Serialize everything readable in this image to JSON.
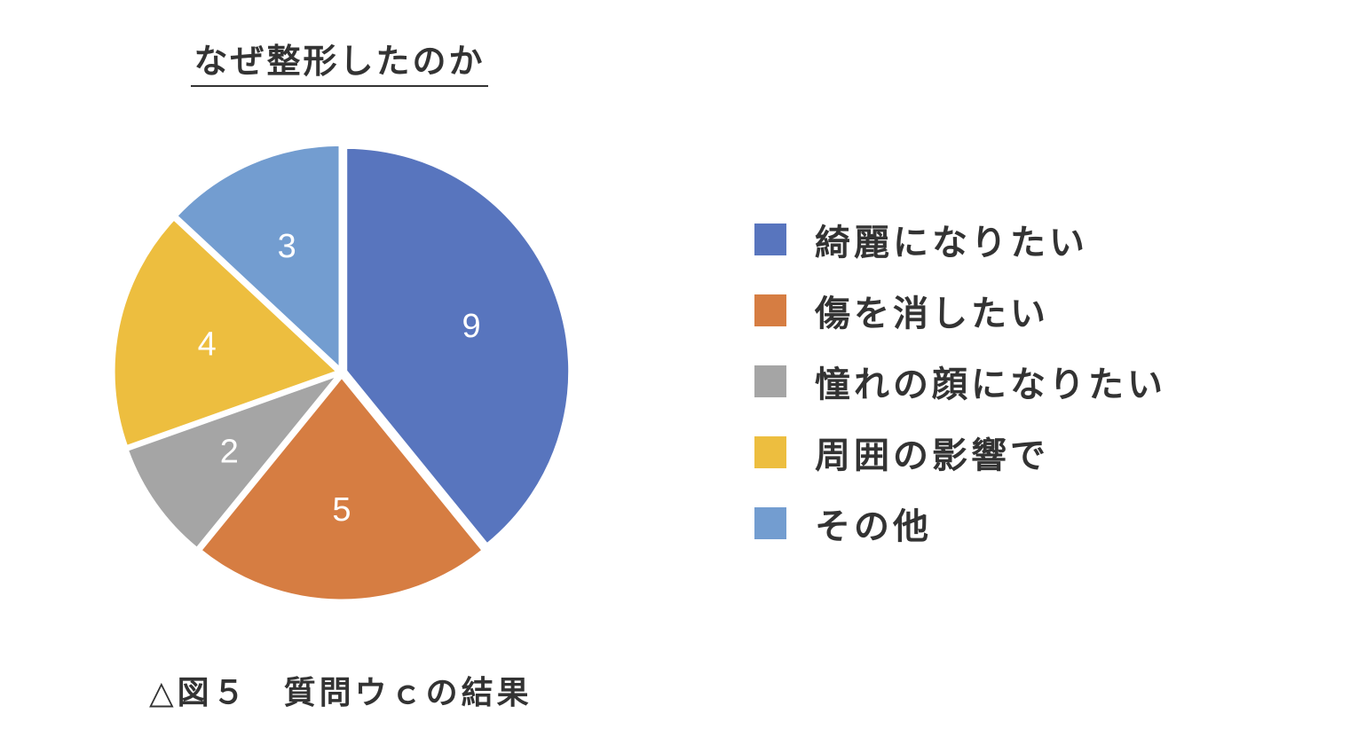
{
  "chart_data": {
    "type": "pie",
    "title": "なぜ整形したのか",
    "categories": [
      "綺麗になりたい",
      "傷を消したい",
      "憧れの顔になりたい",
      "周囲の影響で",
      "その他"
    ],
    "values": [
      9,
      5,
      2,
      4,
      3
    ],
    "colors": [
      "#5875BE",
      "#D67D42",
      "#A5A5A5",
      "#EDBE3F",
      "#739DD0"
    ],
    "data_labels": [
      "9",
      "5",
      "2",
      "4",
      "3"
    ],
    "legend": {
      "position": "right",
      "entries": [
        {
          "label": "綺麗になりたい",
          "color": "#5875BE"
        },
        {
          "label": "傷を消したい",
          "color": "#D67D42"
        },
        {
          "label": "憧れの顔になりたい",
          "color": "#A5A5A5"
        },
        {
          "label": "周囲の影響で",
          "color": "#EDBE3F"
        },
        {
          "label": "その他",
          "color": "#739DD0"
        }
      ]
    },
    "exploded": true,
    "start": "12 o'clock, clockwise"
  },
  "caption": "△図５　質問ウｃの結果"
}
